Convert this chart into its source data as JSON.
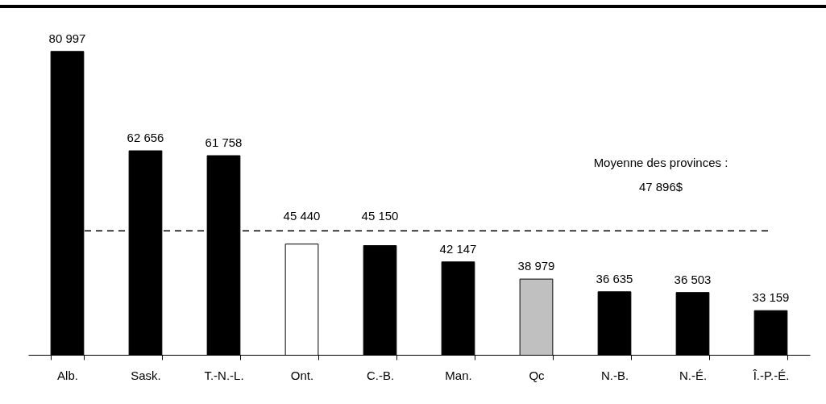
{
  "chart_data": {
    "type": "bar",
    "categories": [
      "Alb.",
      "Sask.",
      "T.-N.-L.",
      "Ont.",
      "C.-B.",
      "Man.",
      "Qc",
      "N.-B.",
      "N.-É.",
      "Î.-P.-É."
    ],
    "values": [
      80997,
      62656,
      61758,
      45440,
      45150,
      42147,
      38979,
      36635,
      36503,
      33159
    ],
    "colors": [
      "#000000",
      "#000000",
      "#000000",
      "#ffffff",
      "#000000",
      "#000000",
      "#c0c0c0",
      "#000000",
      "#000000",
      "#000000"
    ],
    "value_labels": [
      "80 997",
      "62 656",
      "61 758",
      "45 440",
      "45 150",
      "42 147",
      "38 979",
      "36 635",
      "36 503",
      "33 159"
    ],
    "ref_lines": [
      {
        "axis": "y",
        "value": 47896,
        "label": "Moyenne des provinces :\n47 896$",
        "color": "#000000",
        "line_style": "dashed"
      }
    ],
    "ylim": [
      25000,
      89300
    ]
  }
}
